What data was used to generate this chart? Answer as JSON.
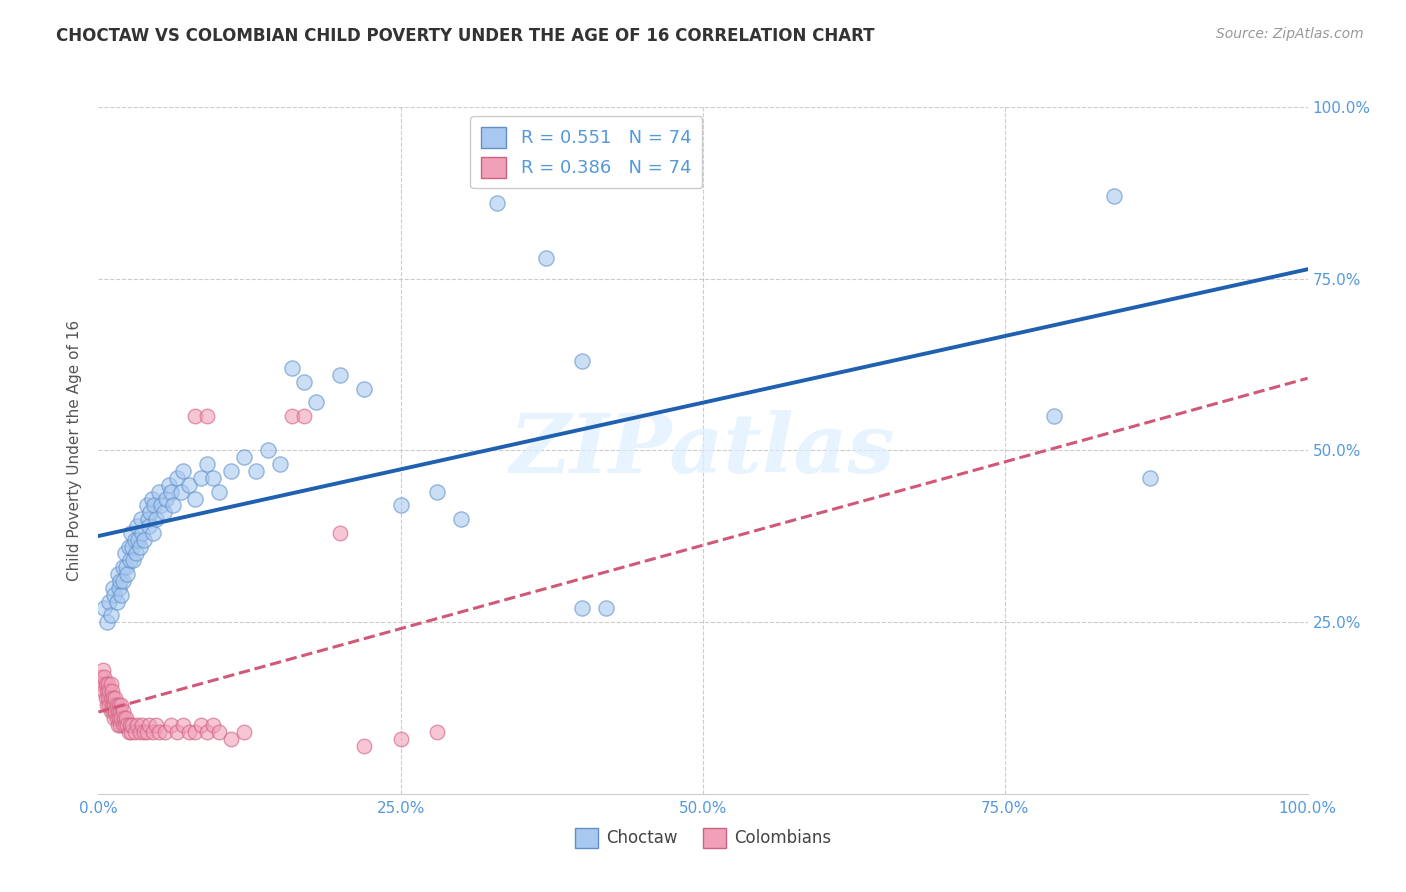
{
  "title": "CHOCTAW VS COLOMBIAN CHILD POVERTY UNDER THE AGE OF 16 CORRELATION CHART",
  "source": "Source: ZipAtlas.com",
  "ylabel": "Child Poverty Under the Age of 16",
  "background_color": "#ffffff",
  "watermark": "ZIPatlas",
  "choctaw_color": "#a8c8f0",
  "colombian_color": "#f0a0b8",
  "choctaw_edge": "#6090c8",
  "colombian_edge": "#d06080",
  "choctaw_R": 0.551,
  "colombian_R": 0.386,
  "N": 74,
  "choctaw_line_color": "#2060b0",
  "colombian_line_color": "#d05878",
  "grid_color": "#cccccc",
  "tick_color": "#5599dd",
  "xlim": [
    0,
    1
  ],
  "ylim": [
    0,
    1
  ],
  "xticks": [
    0,
    0.25,
    0.5,
    0.75,
    1.0
  ],
  "yticks": [
    0.25,
    0.5,
    0.75,
    1.0
  ],
  "xticklabels": [
    "0.0%",
    "25.0%",
    "50.0%",
    "75.0%",
    "100.0%"
  ],
  "yticklabels_right": [
    "25.0%",
    "50.0%",
    "75.0%",
    "100.0%"
  ],
  "choctaw_x": [
    0.005,
    0.007,
    0.009,
    0.01,
    0.012,
    0.013,
    0.015,
    0.016,
    0.017,
    0.018,
    0.019,
    0.02,
    0.02,
    0.022,
    0.023,
    0.024,
    0.025,
    0.026,
    0.027,
    0.028,
    0.029,
    0.03,
    0.031,
    0.032,
    0.033,
    0.034,
    0.035,
    0.036,
    0.038,
    0.04,
    0.041,
    0.042,
    0.043,
    0.044,
    0.045,
    0.046,
    0.048,
    0.05,
    0.052,
    0.054,
    0.056,
    0.058,
    0.06,
    0.062,
    0.065,
    0.068,
    0.07,
    0.075,
    0.08,
    0.085,
    0.09,
    0.095,
    0.1,
    0.11,
    0.12,
    0.13,
    0.14,
    0.15,
    0.16,
    0.17,
    0.18,
    0.2,
    0.22,
    0.25,
    0.28,
    0.3,
    0.33,
    0.37,
    0.4,
    0.4,
    0.42,
    0.79,
    0.84,
    0.87
  ],
  "choctaw_y": [
    0.27,
    0.25,
    0.28,
    0.26,
    0.3,
    0.29,
    0.28,
    0.32,
    0.3,
    0.31,
    0.29,
    0.33,
    0.31,
    0.35,
    0.33,
    0.32,
    0.36,
    0.34,
    0.38,
    0.36,
    0.34,
    0.37,
    0.35,
    0.39,
    0.37,
    0.36,
    0.4,
    0.38,
    0.37,
    0.42,
    0.4,
    0.39,
    0.41,
    0.43,
    0.38,
    0.42,
    0.4,
    0.44,
    0.42,
    0.41,
    0.43,
    0.45,
    0.44,
    0.42,
    0.46,
    0.44,
    0.47,
    0.45,
    0.43,
    0.46,
    0.48,
    0.46,
    0.44,
    0.47,
    0.49,
    0.47,
    0.5,
    0.48,
    0.62,
    0.6,
    0.57,
    0.61,
    0.59,
    0.42,
    0.44,
    0.4,
    0.86,
    0.78,
    0.63,
    0.27,
    0.27,
    0.55,
    0.87,
    0.46
  ],
  "colombian_x": [
    0.002,
    0.003,
    0.004,
    0.005,
    0.005,
    0.006,
    0.006,
    0.007,
    0.007,
    0.008,
    0.008,
    0.009,
    0.009,
    0.01,
    0.01,
    0.01,
    0.011,
    0.011,
    0.012,
    0.012,
    0.013,
    0.013,
    0.014,
    0.014,
    0.015,
    0.015,
    0.016,
    0.016,
    0.017,
    0.017,
    0.018,
    0.018,
    0.019,
    0.019,
    0.02,
    0.02,
    0.021,
    0.022,
    0.023,
    0.024,
    0.025,
    0.026,
    0.027,
    0.028,
    0.03,
    0.032,
    0.034,
    0.036,
    0.038,
    0.04,
    0.042,
    0.045,
    0.048,
    0.05,
    0.055,
    0.06,
    0.065,
    0.07,
    0.075,
    0.08,
    0.085,
    0.09,
    0.095,
    0.1,
    0.11,
    0.12,
    0.08,
    0.09,
    0.16,
    0.17,
    0.2,
    0.22,
    0.25,
    0.28
  ],
  "colombian_y": [
    0.17,
    0.16,
    0.18,
    0.15,
    0.17,
    0.14,
    0.16,
    0.13,
    0.15,
    0.14,
    0.16,
    0.13,
    0.15,
    0.12,
    0.14,
    0.16,
    0.13,
    0.15,
    0.12,
    0.14,
    0.11,
    0.13,
    0.12,
    0.14,
    0.11,
    0.13,
    0.1,
    0.12,
    0.11,
    0.13,
    0.1,
    0.12,
    0.11,
    0.13,
    0.1,
    0.12,
    0.11,
    0.1,
    0.11,
    0.1,
    0.09,
    0.1,
    0.09,
    0.1,
    0.09,
    0.1,
    0.09,
    0.1,
    0.09,
    0.09,
    0.1,
    0.09,
    0.1,
    0.09,
    0.09,
    0.1,
    0.09,
    0.1,
    0.09,
    0.09,
    0.1,
    0.09,
    0.1,
    0.09,
    0.08,
    0.09,
    0.55,
    0.55,
    0.55,
    0.55,
    0.38,
    0.07,
    0.08,
    0.09
  ]
}
